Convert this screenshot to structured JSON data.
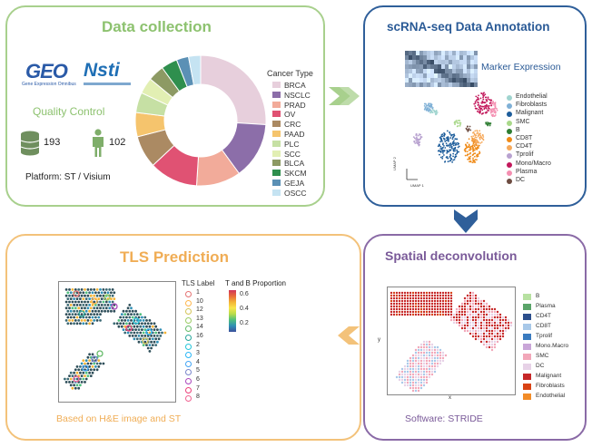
{
  "panels": {
    "data_collection": {
      "title": "Data collection",
      "geo_logo": "GEO",
      "geo_sub": "Gene Expression Omnibus",
      "ngdc_logo": "Nsti",
      "quality_control": "Quality Control",
      "samples_count": "193",
      "patients_count": "102",
      "platform": "Platform: ST / Visium",
      "cancer_type_title": "Cancer Type",
      "cancer_types": [
        {
          "label": "BRCA",
          "color": "#e7cfdc",
          "share": 0.26
        },
        {
          "label": "NSCLC",
          "color": "#8c6ea9",
          "share": 0.14
        },
        {
          "label": "PRAD",
          "color": "#f2ab9a",
          "share": 0.11
        },
        {
          "label": "OV",
          "color": "#e05273",
          "share": 0.12
        },
        {
          "label": "CRC",
          "color": "#ab8a63",
          "share": 0.08
        },
        {
          "label": "PAAD",
          "color": "#f5c46d",
          "share": 0.06
        },
        {
          "label": "PLC",
          "color": "#c6e0a4",
          "share": 0.05
        },
        {
          "label": "SCC",
          "color": "#e2efb3",
          "share": 0.04
        },
        {
          "label": "BLCA",
          "color": "#8d9a64",
          "share": 0.04
        },
        {
          "label": "SKCM",
          "color": "#2f8f4e",
          "share": 0.04
        },
        {
          "label": "GEJA",
          "color": "#5b90b5",
          "share": 0.03
        },
        {
          "label": "OSCC",
          "color": "#c5e3f2",
          "share": 0.03
        }
      ]
    },
    "annotation": {
      "title": "scRNA-seq Data Annotation",
      "marker_label": "Marker Expression",
      "axis_y": "UMAP 2",
      "axis_x": "UMAP 1",
      "cell_types": [
        {
          "label": "Endothelial",
          "color": "#9fd4cf"
        },
        {
          "label": "Fibroblasts",
          "color": "#7fb0d6"
        },
        {
          "label": "Malignant",
          "color": "#1d5d9b"
        },
        {
          "label": "SMC",
          "color": "#a9d88a"
        },
        {
          "label": "B",
          "color": "#2e7d32"
        },
        {
          "label": "CD8T",
          "color": "#ef8a17"
        },
        {
          "label": "CD4T",
          "color": "#f6a95b"
        },
        {
          "label": "Tprolif",
          "color": "#b8a2d0"
        },
        {
          "label": "Mono/Macro",
          "color": "#c2185b"
        },
        {
          "label": "Plasma",
          "color": "#f48fb1"
        },
        {
          "label": "DC",
          "color": "#6d4c41"
        }
      ]
    },
    "tls": {
      "title": "TLS Prediction",
      "label_title": "TLS Label",
      "labels": [
        {
          "label": "1",
          "color": "#e57373"
        },
        {
          "label": "10",
          "color": "#ffb74d"
        },
        {
          "label": "12",
          "color": "#d4c55a"
        },
        {
          "label": "13",
          "color": "#9ccc65"
        },
        {
          "label": "14",
          "color": "#66bb6a"
        },
        {
          "label": "16",
          "color": "#26a69a"
        },
        {
          "label": "2",
          "color": "#26c6da"
        },
        {
          "label": "3",
          "color": "#29b6f6"
        },
        {
          "label": "4",
          "color": "#42a5f5"
        },
        {
          "label": "5",
          "color": "#7986cb"
        },
        {
          "label": "6",
          "color": "#ab47bc"
        },
        {
          "label": "7",
          "color": "#ec407a"
        },
        {
          "label": "8",
          "color": "#f06292"
        }
      ],
      "colorbar_title": "T and B Proportion",
      "colorbar_ticks": [
        "0.6",
        "0.4",
        "0.2"
      ],
      "caption": "Based on H&E image and ST"
    },
    "spatial": {
      "title": "Spatial deconvolution",
      "axis_y": "y",
      "axis_x": "x",
      "cell_types": [
        {
          "label": "B",
          "color": "#b7e1a1"
        },
        {
          "label": "Plasma",
          "color": "#5aa469"
        },
        {
          "label": "CD4T",
          "color": "#2c4f8c"
        },
        {
          "label": "CD8T",
          "color": "#a8c8e8"
        },
        {
          "label": "Tprolif",
          "color": "#3a7bbf"
        },
        {
          "label": "Mono.Macro",
          "color": "#c9a6d8"
        },
        {
          "label": "SMC",
          "color": "#f2a7b9"
        },
        {
          "label": "DC",
          "color": "#e7d2e7"
        },
        {
          "label": "Malignant",
          "color": "#c62828"
        },
        {
          "label": "Fibroblasts",
          "color": "#d84315"
        },
        {
          "label": "Endothelial",
          "color": "#f28c28"
        }
      ],
      "caption": "Software: STRIDE"
    }
  }
}
